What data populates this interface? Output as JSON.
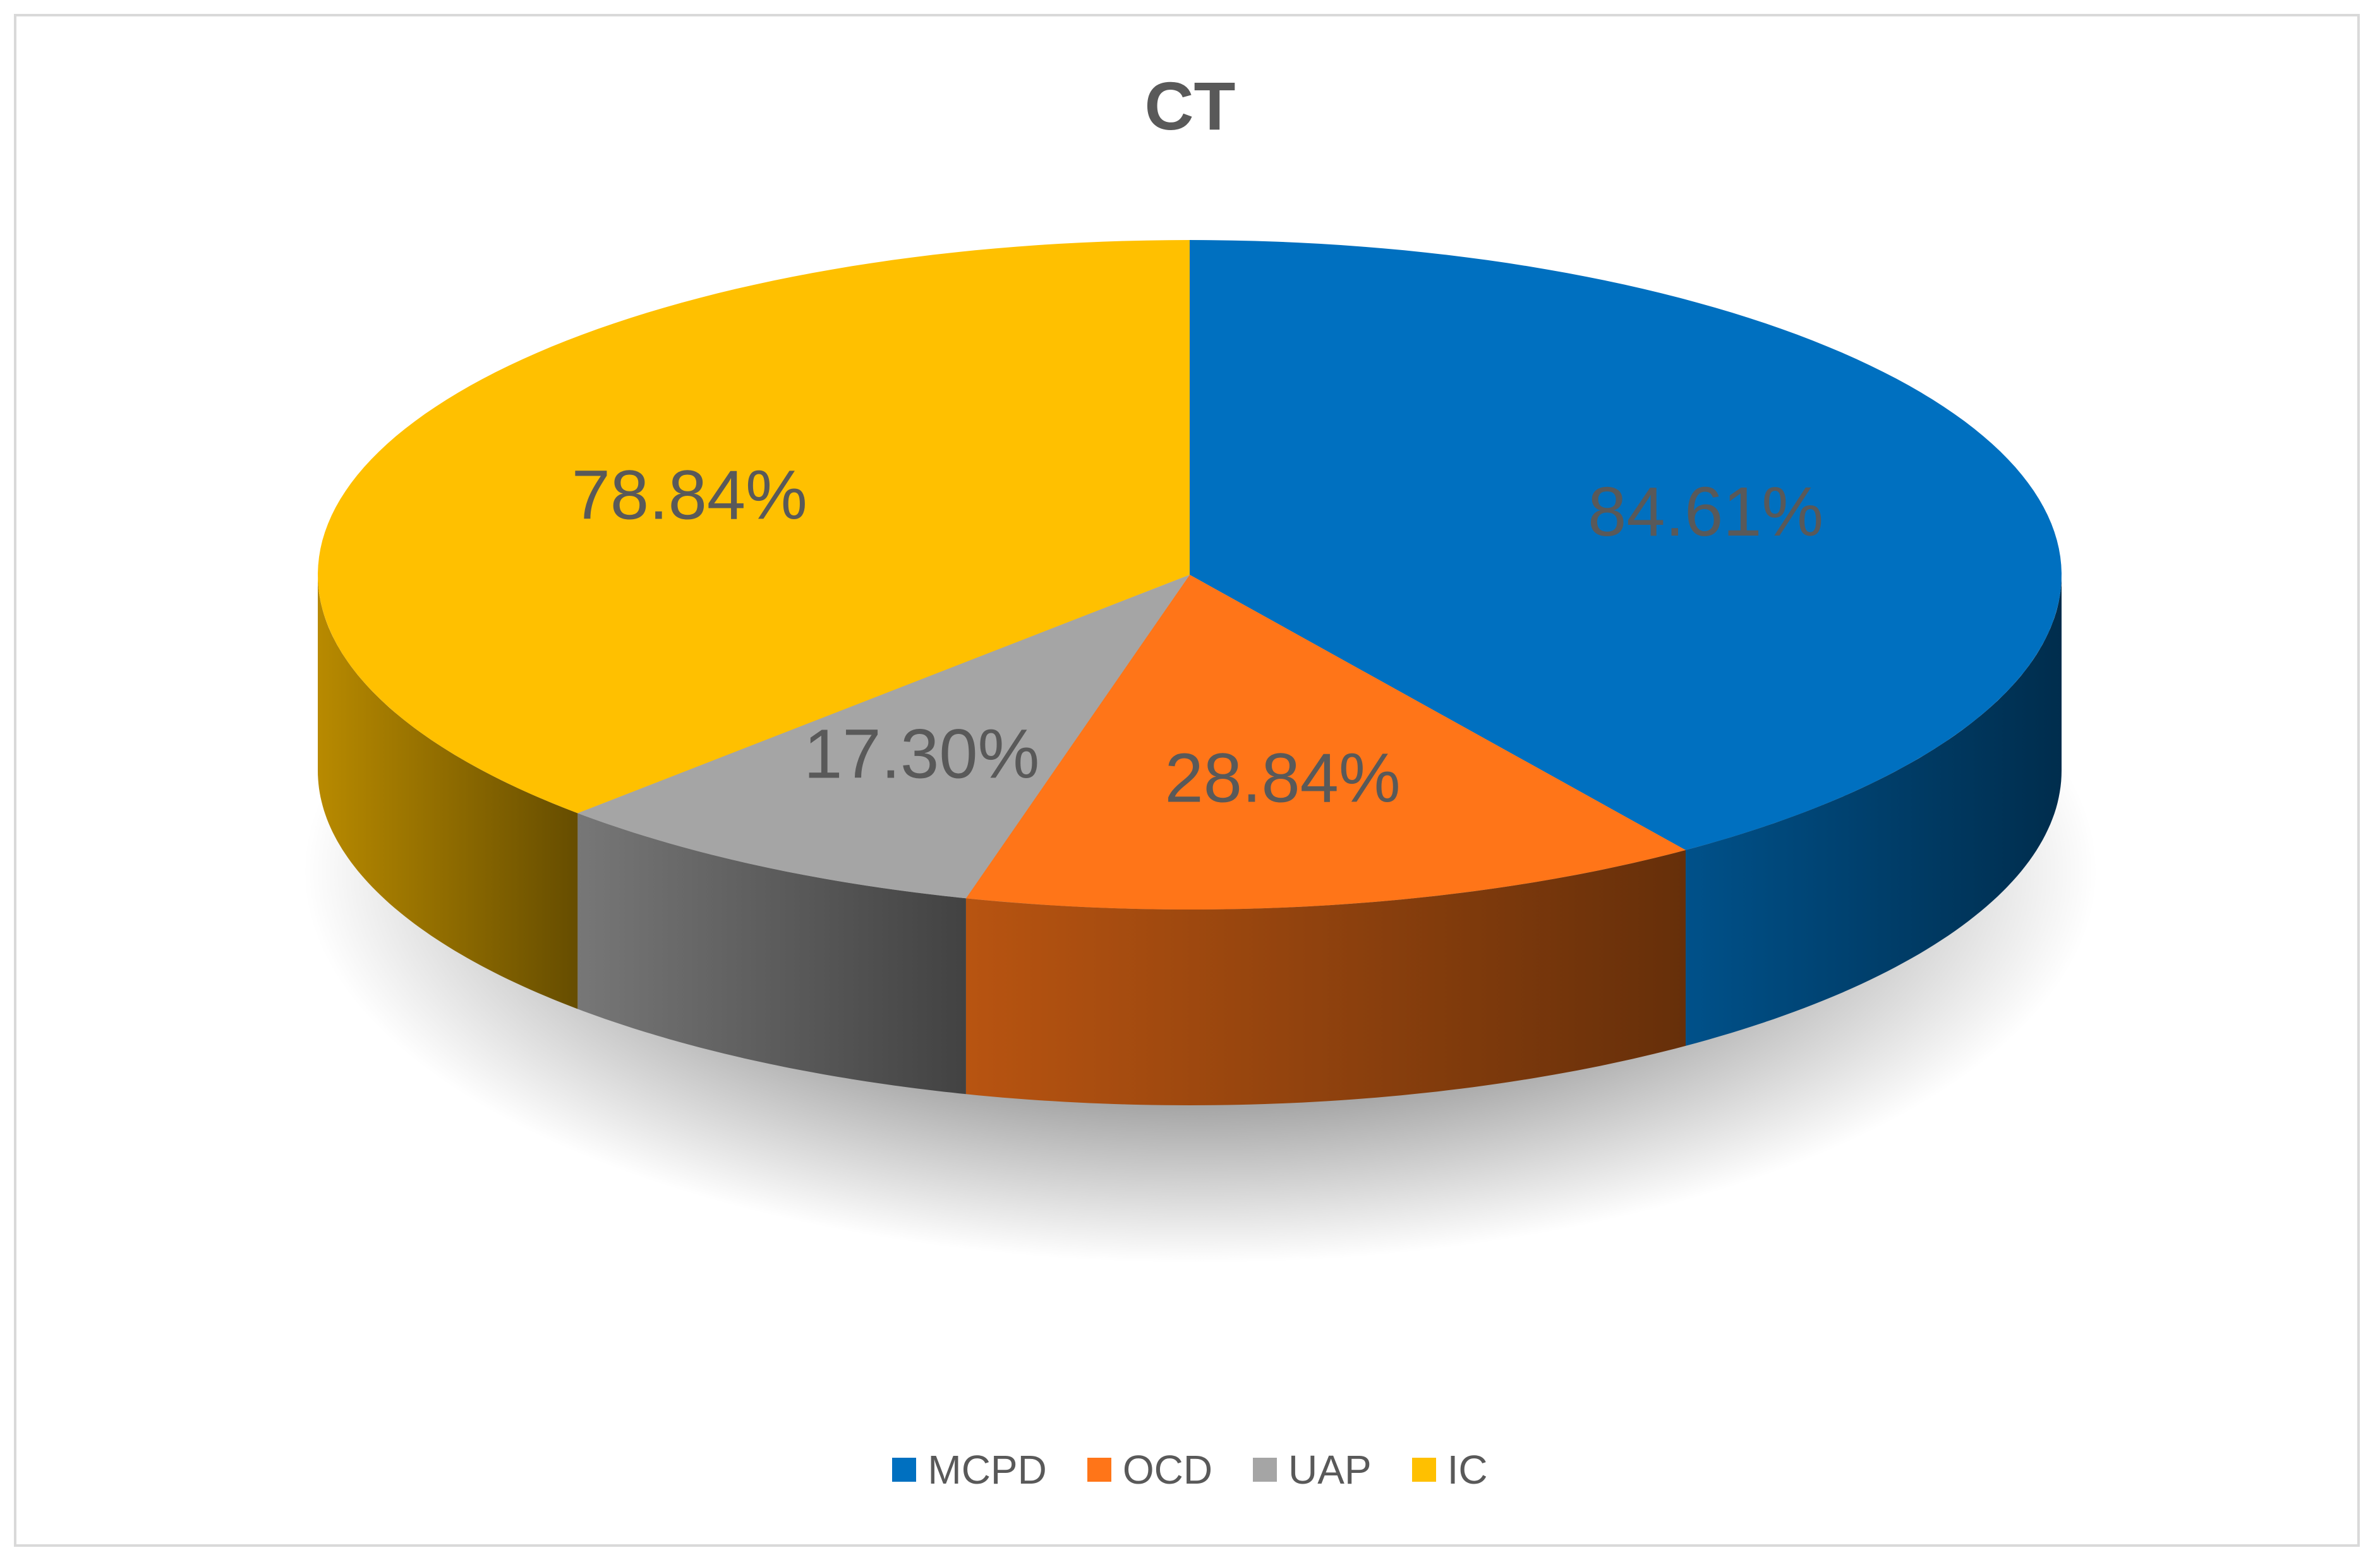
{
  "chart_data": {
    "type": "pie",
    "title": "CT",
    "style": "3d",
    "legend_position": "bottom",
    "slices": [
      {
        "label": "MCPD",
        "value": 84.61,
        "data_label": "84.61%",
        "color": "#0070c0"
      },
      {
        "label": "OCD",
        "value": 28.84,
        "data_label": "28.84%",
        "color": "#ff7518"
      },
      {
        "label": "UAP",
        "value": 17.3,
        "data_label": "17.30%",
        "color": "#a5a5a5"
      },
      {
        "label": "IC",
        "value": 78.84,
        "data_label": "78.84%",
        "color": "#ffc000"
      }
    ]
  }
}
